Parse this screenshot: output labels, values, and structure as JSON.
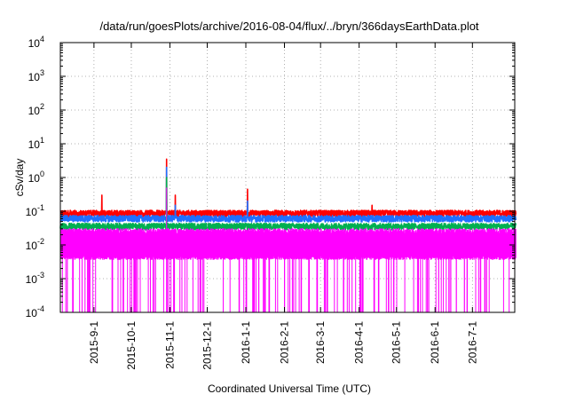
{
  "chart_data": {
    "type": "line",
    "title": "/data/run/goesPlots/archive/2016-08-04/flux/../bryn/366daysEarthData.plot",
    "xlabel": "Coordinated Universal Time (UTC)",
    "ylabel": "cSv/day",
    "scale": {
      "y": "log"
    },
    "grid": true,
    "legend": "none",
    "xlim": [
      "2015-08-05",
      "2016-08-04"
    ],
    "ylim": [
      0.0001,
      10000
    ],
    "y_ticks": [
      {
        "base": "10",
        "exp": "-4",
        "value": 0.0001
      },
      {
        "base": "10",
        "exp": "-3",
        "value": 0.001
      },
      {
        "base": "10",
        "exp": "-2",
        "value": 0.01
      },
      {
        "base": "10",
        "exp": "-1",
        "value": 0.1
      },
      {
        "base": "10",
        "exp": "0",
        "value": 1
      },
      {
        "base": "10",
        "exp": "1",
        "value": 10
      },
      {
        "base": "10",
        "exp": "2",
        "value": 100
      },
      {
        "base": "10",
        "exp": "3",
        "value": 1000
      },
      {
        "base": "10",
        "exp": "4",
        "value": 10000
      }
    ],
    "x_ticks": [
      {
        "label": "2015-9-1",
        "date": "2015-09-01"
      },
      {
        "label": "2015-10-1",
        "date": "2015-10-01"
      },
      {
        "label": "2015-11-1",
        "date": "2015-11-01"
      },
      {
        "label": "2015-12-1",
        "date": "2015-12-01"
      },
      {
        "label": "2016-1-1",
        "date": "2016-01-01"
      },
      {
        "label": "2016-2-1",
        "date": "2016-02-01"
      },
      {
        "label": "2016-3-1",
        "date": "2016-03-01"
      },
      {
        "label": "2016-4-1",
        "date": "2016-04-01"
      },
      {
        "label": "2016-5-1",
        "date": "2016-05-01"
      },
      {
        "label": "2016-6-1",
        "date": "2016-06-01"
      },
      {
        "label": "2016-7-1",
        "date": "2016-07-01"
      }
    ],
    "series": [
      {
        "color": "#ff0000",
        "baseline": 0.085,
        "spikes": [
          {
            "date": "2015-09-07",
            "value": 0.3
          },
          {
            "date": "2015-10-29",
            "value": 3.5
          },
          {
            "date": "2015-11-05",
            "value": 0.3
          },
          {
            "date": "2016-01-02",
            "value": 0.45
          },
          {
            "date": "2016-04-11",
            "value": 0.15
          }
        ]
      },
      {
        "color": "#1f6fff",
        "baseline": 0.06,
        "spikes": [
          {
            "date": "2015-10-29",
            "value": 2.0
          },
          {
            "date": "2015-11-05",
            "value": 0.15
          },
          {
            "date": "2016-01-02",
            "value": 0.2
          }
        ]
      },
      {
        "color": "#00b050",
        "baseline": 0.035,
        "spikes": [
          {
            "date": "2015-10-29",
            "value": 1.0
          }
        ]
      },
      {
        "color": "#ff00ff",
        "baseline": 0.025,
        "floor": 0.004,
        "spikes": [
          {
            "date": "2015-10-29",
            "value": 0.5
          }
        ]
      }
    ]
  }
}
